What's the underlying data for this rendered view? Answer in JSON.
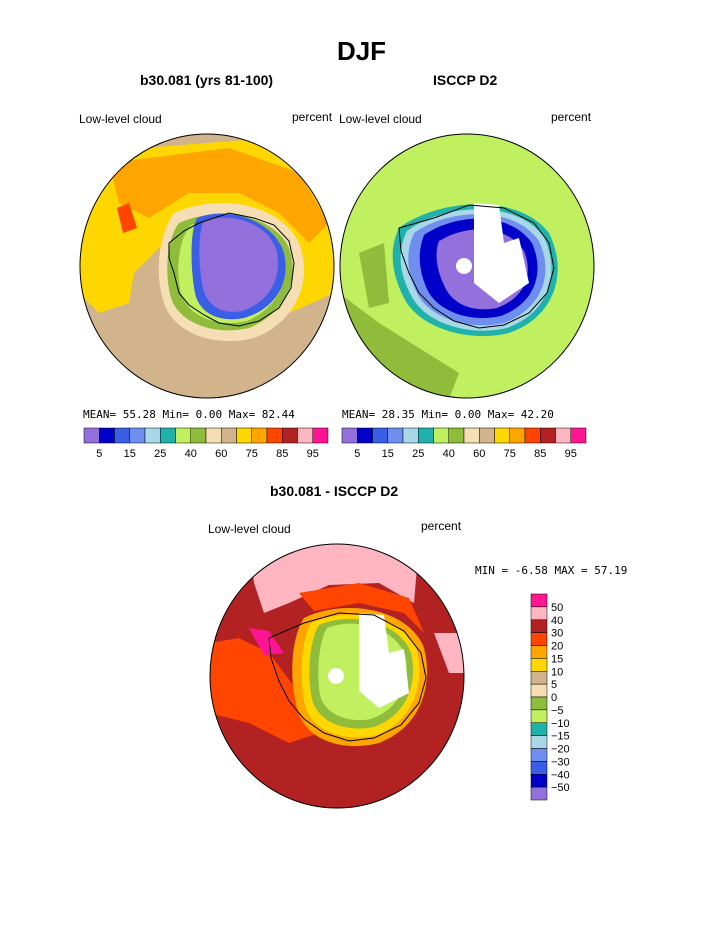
{
  "page": {
    "title": "DJF"
  },
  "panels": [
    {
      "title": "b30.081 (yrs 81-100)",
      "left_label": "Low-level cloud",
      "right_label": "percent",
      "stats": "MEAN=  55.28  Min=   0.00  Max=  82.44",
      "mean": 55.28,
      "min": 0.0,
      "max": 82.44
    },
    {
      "title": "ISCCP D2",
      "left_label": "Low-level cloud",
      "right_label": "percent",
      "stats": "MEAN=  28.35  Min=   0.00  Max=  42.20",
      "mean": 28.35,
      "min": 0.0,
      "max": 42.2
    },
    {
      "title": "b30.081 - ISCCP D2",
      "left_label": "Low-level cloud",
      "right_label": "percent",
      "stats": "MIN =  -6.58 MAX =  57.19",
      "min": -6.58,
      "max": 57.19
    }
  ],
  "chart_data": [
    {
      "type": "heatmap",
      "projection": "south-polar-stereographic",
      "title": "b30.081 (yrs 81-100)",
      "variable": "Low-level cloud",
      "units": "percent",
      "levels": [
        5,
        10,
        15,
        20,
        25,
        30,
        40,
        50,
        60,
        70,
        75,
        80,
        85,
        90,
        95
      ],
      "tick_labels": [
        "5",
        "15",
        "25",
        "40",
        "60",
        "75",
        "85",
        "95"
      ],
      "colors": [
        "#9370db",
        "#0000c8",
        "#3a5fe6",
        "#6f8ff0",
        "#a8d8e8",
        "#20b2aa",
        "#c0f060",
        "#8fbc3a",
        "#f5deb3",
        "#d2b48c",
        "#ffd700",
        "#ffa500",
        "#ff4500",
        "#b22222",
        "#ffb6c1",
        "#ff1493"
      ],
      "stats": {
        "mean": 55.28,
        "min": 0.0,
        "max": 82.44
      }
    },
    {
      "type": "heatmap",
      "projection": "south-polar-stereographic",
      "title": "ISCCP D2",
      "variable": "Low-level cloud",
      "units": "percent",
      "levels": [
        5,
        10,
        15,
        20,
        25,
        30,
        40,
        50,
        60,
        70,
        75,
        80,
        85,
        90,
        95
      ],
      "tick_labels": [
        "5",
        "15",
        "25",
        "40",
        "60",
        "75",
        "85",
        "95"
      ],
      "colors": [
        "#9370db",
        "#0000c8",
        "#3a5fe6",
        "#6f8ff0",
        "#a8d8e8",
        "#20b2aa",
        "#c0f060",
        "#8fbc3a",
        "#f5deb3",
        "#d2b48c",
        "#ffd700",
        "#ffa500",
        "#ff4500",
        "#b22222",
        "#ffb6c1",
        "#ff1493"
      ],
      "stats": {
        "mean": 28.35,
        "min": 0.0,
        "max": 42.2
      }
    },
    {
      "type": "heatmap",
      "projection": "south-polar-stereographic",
      "title": "b30.081 - ISCCP D2",
      "variable": "Low-level cloud",
      "units": "percent",
      "levels": [
        50,
        40,
        30,
        20,
        15,
        10,
        5,
        0,
        -5,
        -10,
        -15,
        -20,
        -30,
        -40,
        -50
      ],
      "tick_labels": [
        "50",
        "40",
        "30",
        "20",
        "15",
        "10",
        "5",
        "0",
        "−5",
        "−10",
        "−15",
        "−20",
        "−30",
        "−40",
        "−50"
      ],
      "colors": [
        "#ff1493",
        "#ffb6c1",
        "#b22222",
        "#ff4500",
        "#ffa500",
        "#ffd700",
        "#d2b48c",
        "#f5deb3",
        "#8fbc3a",
        "#c0f060",
        "#20b2aa",
        "#a8d8e8",
        "#6f8ff0",
        "#3a5fe6",
        "#0000c8",
        "#9370db"
      ],
      "stats": {
        "min": -6.58,
        "max": 57.19
      }
    }
  ]
}
